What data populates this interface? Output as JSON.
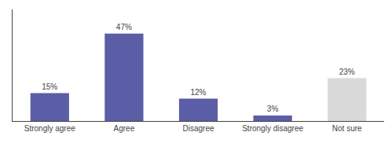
{
  "chart_data": {
    "type": "bar",
    "categories": [
      "Strongly agree",
      "Agree",
      "Disagree",
      "Strongly disagree",
      "Not sure"
    ],
    "values": [
      15,
      47,
      12,
      3,
      23
    ],
    "value_labels": [
      "15%",
      "47%",
      "12%",
      "3%",
      "23%"
    ],
    "colors": [
      "#5b5ea6",
      "#5b5ea6",
      "#5b5ea6",
      "#5b5ea6",
      "#d9d9d9"
    ],
    "ylim": [
      0,
      60
    ],
    "data_labels": true,
    "tick_labels": "x",
    "grid": false
  }
}
